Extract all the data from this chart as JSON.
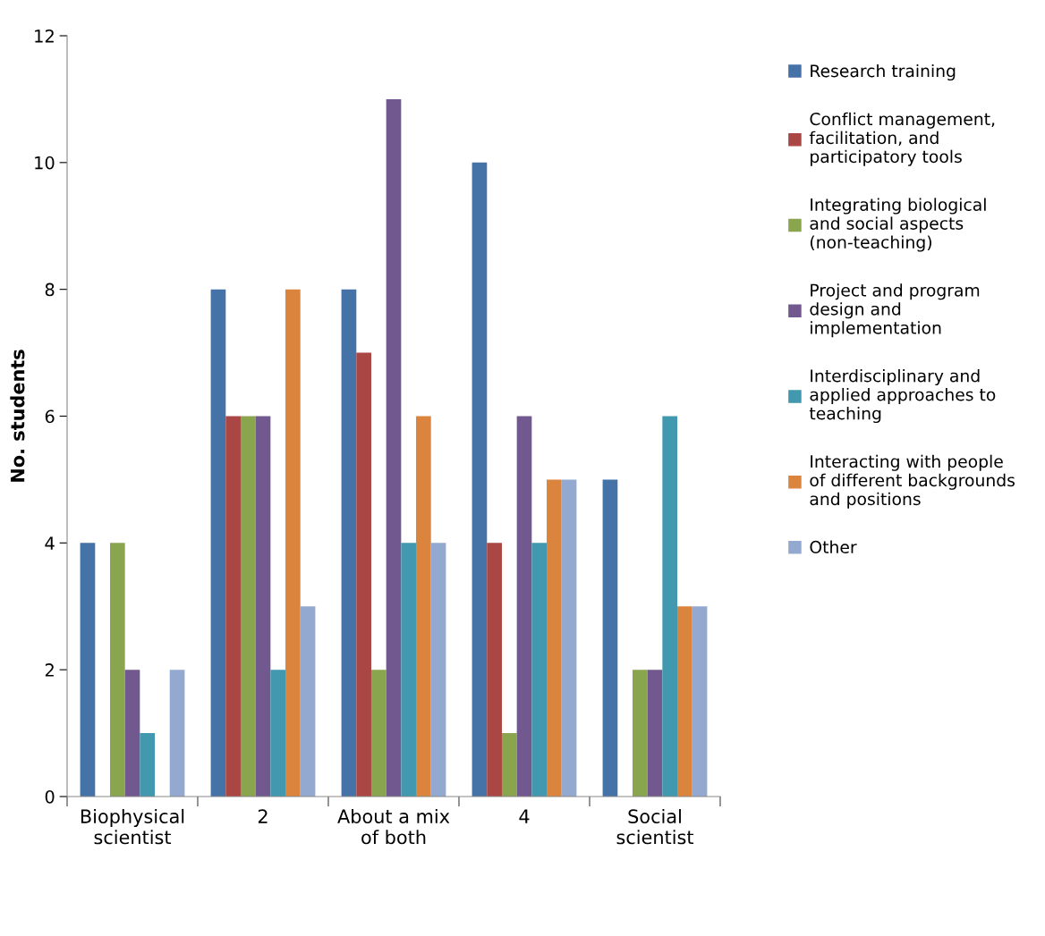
{
  "chart_data": {
    "type": "bar",
    "ylabel": "No. students",
    "categories": [
      "Biophysical scientist",
      "2",
      "About a mix of both",
      "4",
      "Social scientist"
    ],
    "series": [
      {
        "name": "Research training",
        "color": "#4572a7",
        "values": [
          4,
          8,
          8,
          10,
          5
        ]
      },
      {
        "name": "Conflict management, facilitation, and participatory tools",
        "color": "#aa4643",
        "values": [
          0,
          6,
          7,
          4,
          0
        ]
      },
      {
        "name": "Integrating biological and social aspects (non-teaching)",
        "color": "#89a54e",
        "values": [
          4,
          6,
          2,
          1,
          2
        ]
      },
      {
        "name": "Project and program design and implementation",
        "color": "#71588f",
        "values": [
          2,
          6,
          11,
          6,
          2
        ]
      },
      {
        "name": "Interdisciplinary and applied approaches to teaching",
        "color": "#4198af",
        "values": [
          1,
          2,
          4,
          4,
          6
        ]
      },
      {
        "name": "Interacting with people of different backgrounds and positions",
        "color": "#db843d",
        "values": [
          0,
          8,
          6,
          5,
          3
        ]
      },
      {
        "name": "Other",
        "color": "#93a9cf",
        "values": [
          2,
          3,
          4,
          5,
          3
        ]
      }
    ],
    "ylim": [
      0,
      12
    ],
    "yticks": [
      0,
      2,
      4,
      6,
      8,
      10,
      12
    ],
    "grid": false,
    "legend": "right"
  }
}
